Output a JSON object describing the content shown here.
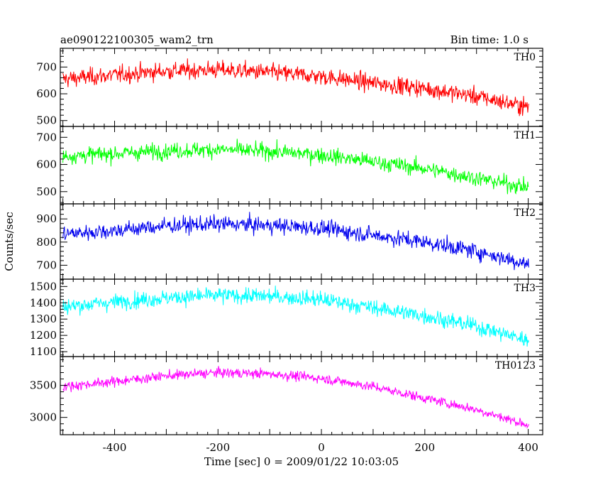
{
  "header": {
    "left_title": "ae090122100305_wam2_trn",
    "right_title": "Bin time: 1.0 s"
  },
  "chart_data": {
    "type": "line",
    "title": "ae090122100305_wam2_trn",
    "subtitle": "Bin time: 1.0 s",
    "xlabel": "Time [sec] 0 = 2009/01/22 10:03:05",
    "ylabel": "Counts/sec",
    "xlim": [
      -505,
      428
    ],
    "x_ticks": [
      -400,
      -200,
      0,
      200,
      400
    ],
    "grid": false,
    "panels": [
      {
        "name": "TH0",
        "color": "#ff0000",
        "ylim": [
          478,
          770
        ],
        "y_ticks": [
          500,
          600,
          700
        ],
        "trend": [
          {
            "x": -500,
            "y": 655
          },
          {
            "x": -400,
            "y": 670
          },
          {
            "x": -300,
            "y": 685
          },
          {
            "x": -200,
            "y": 690
          },
          {
            "x": -100,
            "y": 680
          },
          {
            "x": 0,
            "y": 665
          },
          {
            "x": 100,
            "y": 640
          },
          {
            "x": 200,
            "y": 620
          },
          {
            "x": 300,
            "y": 590
          },
          {
            "x": 400,
            "y": 550
          }
        ],
        "noise": 30
      },
      {
        "name": "TH1",
        "color": "#00ff00",
        "ylim": [
          455,
          740
        ],
        "y_ticks": [
          500,
          600,
          700
        ],
        "trend": [
          {
            "x": -500,
            "y": 630
          },
          {
            "x": -400,
            "y": 640
          },
          {
            "x": -300,
            "y": 650
          },
          {
            "x": -200,
            "y": 655
          },
          {
            "x": -100,
            "y": 648
          },
          {
            "x": 0,
            "y": 635
          },
          {
            "x": 100,
            "y": 610
          },
          {
            "x": 200,
            "y": 585
          },
          {
            "x": 300,
            "y": 550
          },
          {
            "x": 400,
            "y": 515
          }
        ],
        "noise": 27
      },
      {
        "name": "TH2",
        "color": "#0000ee",
        "ylim": [
          640,
          965
        ],
        "y_ticks": [
          700,
          800,
          900
        ],
        "trend": [
          {
            "x": -500,
            "y": 835
          },
          {
            "x": -400,
            "y": 850
          },
          {
            "x": -300,
            "y": 870
          },
          {
            "x": -200,
            "y": 878
          },
          {
            "x": -100,
            "y": 872
          },
          {
            "x": 0,
            "y": 860
          },
          {
            "x": 100,
            "y": 830
          },
          {
            "x": 200,
            "y": 800
          },
          {
            "x": 300,
            "y": 760
          },
          {
            "x": 400,
            "y": 705
          }
        ],
        "noise": 32
      },
      {
        "name": "TH3",
        "color": "#00ffff",
        "ylim": [
          1070,
          1545
        ],
        "y_ticks": [
          1100,
          1200,
          1300,
          1400,
          1500
        ],
        "trend": [
          {
            "x": -500,
            "y": 1375
          },
          {
            "x": -400,
            "y": 1405
          },
          {
            "x": -300,
            "y": 1430
          },
          {
            "x": -200,
            "y": 1445
          },
          {
            "x": -100,
            "y": 1440
          },
          {
            "x": 0,
            "y": 1420
          },
          {
            "x": 100,
            "y": 1370
          },
          {
            "x": 200,
            "y": 1320
          },
          {
            "x": 300,
            "y": 1255
          },
          {
            "x": 400,
            "y": 1170
          }
        ],
        "noise": 45
      },
      {
        "name": "TH0123",
        "color": "#ff00ff",
        "ylim": [
          2730,
          3950
        ],
        "y_ticks": [
          3000,
          3500
        ],
        "trend": [
          {
            "x": -500,
            "y": 3480
          },
          {
            "x": -400,
            "y": 3560
          },
          {
            "x": -300,
            "y": 3650
          },
          {
            "x": -200,
            "y": 3700
          },
          {
            "x": -100,
            "y": 3680
          },
          {
            "x": 0,
            "y": 3610
          },
          {
            "x": 100,
            "y": 3480
          },
          {
            "x": 200,
            "y": 3300
          },
          {
            "x": 300,
            "y": 3120
          },
          {
            "x": 400,
            "y": 2880
          }
        ],
        "noise": 70
      }
    ]
  }
}
